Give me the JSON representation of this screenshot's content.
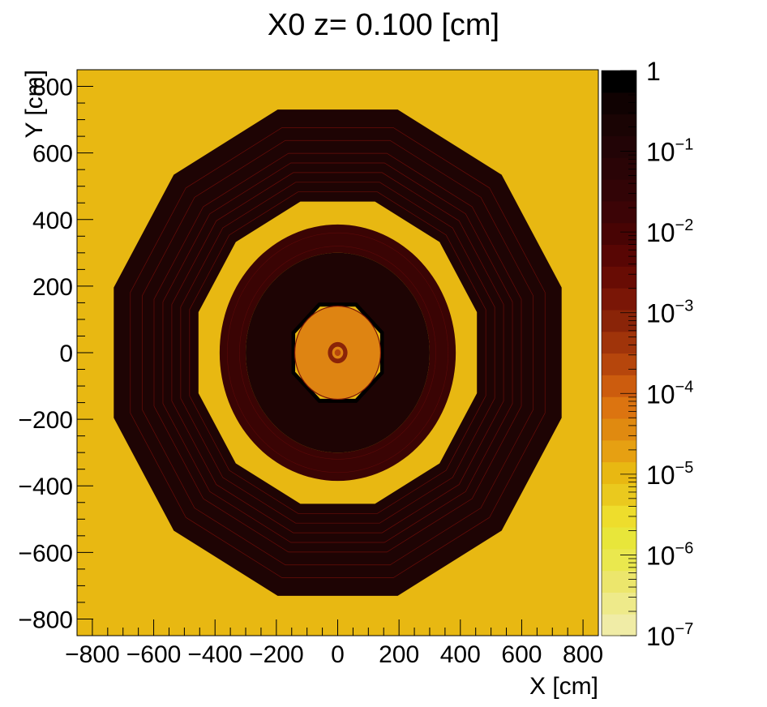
{
  "chart_data": {
    "type": "heatmap",
    "title": "X0 z=  0.100 [cm]",
    "xlabel": "X [cm]",
    "ylabel": "Y [cm]",
    "xlim": [
      -850,
      850
    ],
    "ylim": [
      -850,
      850
    ],
    "x_ticks": [
      {
        "value": -800,
        "label": "−800"
      },
      {
        "value": -600,
        "label": "−600"
      },
      {
        "value": -400,
        "label": "−400"
      },
      {
        "value": -200,
        "label": "−200"
      },
      {
        "value": 0,
        "label": "0"
      },
      {
        "value": 200,
        "label": "200"
      },
      {
        "value": 400,
        "label": "400"
      },
      {
        "value": 600,
        "label": "600"
      },
      {
        "value": 800,
        "label": "800"
      }
    ],
    "y_ticks": [
      {
        "value": -800,
        "label": "−800"
      },
      {
        "value": -600,
        "label": "−600"
      },
      {
        "value": -400,
        "label": "−400"
      },
      {
        "value": -200,
        "label": "−200"
      },
      {
        "value": 0,
        "label": "0"
      },
      {
        "value": 200,
        "label": "200"
      },
      {
        "value": 400,
        "label": "400"
      },
      {
        "value": 600,
        "label": "600"
      },
      {
        "value": 800,
        "label": "800"
      }
    ],
    "colorbar": {
      "scale": "log",
      "min": 1e-07,
      "max": 1,
      "ticks": [
        {
          "value": 1,
          "base": "1",
          "exp": ""
        },
        {
          "value": 0.1,
          "base": "10",
          "exp": "−1"
        },
        {
          "value": 0.01,
          "base": "10",
          "exp": "−2"
        },
        {
          "value": 0.001,
          "base": "10",
          "exp": "−3"
        },
        {
          "value": 0.0001,
          "base": "10",
          "exp": "−4"
        },
        {
          "value": 1e-05,
          "base": "10",
          "exp": "−5"
        },
        {
          "value": 1e-06,
          "base": "10",
          "exp": "−6"
        },
        {
          "value": 1e-07,
          "base": "10",
          "exp": "−7"
        }
      ],
      "palette_bottom_to_top": [
        "#f0eca6",
        "#eeea8a",
        "#ece66c",
        "#eae84e",
        "#e8e63a",
        "#eedd2c",
        "#eac91e",
        "#e8b812",
        "#e6a012",
        "#e08a10",
        "#dc7410",
        "#cc5c0e",
        "#b6460c",
        "#a0340a",
        "#8a2408",
        "#7a1606",
        "#680c04",
        "#580604",
        "#480404",
        "#3c0406",
        "#320406",
        "#2a0406",
        "#220406",
        "#1a0404",
        "#100202",
        "#000000"
      ]
    },
    "background_color": "#e8b812",
    "regions": [
      {
        "name": "outer-dodecagon",
        "shape": "polygon",
        "sides": 12,
        "rotation_deg": 15,
        "outer_radius": 756,
        "inner_radius": 470,
        "color": "#1e0404"
      },
      {
        "name": "middle-ring",
        "shape": "ring",
        "outer_radius": 385,
        "inner_radius": 300,
        "color": "#3a0404"
      },
      {
        "name": "inner-disk",
        "shape": "ring",
        "outer_radius": 300,
        "inner_radius": 0,
        "color": "#1e0404"
      },
      {
        "name": "octagon-frame",
        "shape": "polygon",
        "sides": 8,
        "rotation_deg": 22.5,
        "outer_radius": 163,
        "inner_radius": 150,
        "color": "#000000"
      },
      {
        "name": "octagon-fill",
        "shape": "polygon",
        "sides": 8,
        "rotation_deg": 22.5,
        "outer_radius": 150,
        "inner_radius": 0,
        "color": "#e8b812"
      },
      {
        "name": "tracker-disk",
        "shape": "ring",
        "outer_radius": 140,
        "inner_radius": 0,
        "color": "#de8412"
      },
      {
        "name": "beampipe-ring",
        "shape": "ring",
        "outer_radius": 32,
        "inner_radius": 18,
        "color": "#8a2408"
      },
      {
        "name": "beampipe-core",
        "shape": "ring",
        "outer_radius": 10,
        "inner_radius": 0,
        "color": "#b6460c"
      }
    ]
  }
}
